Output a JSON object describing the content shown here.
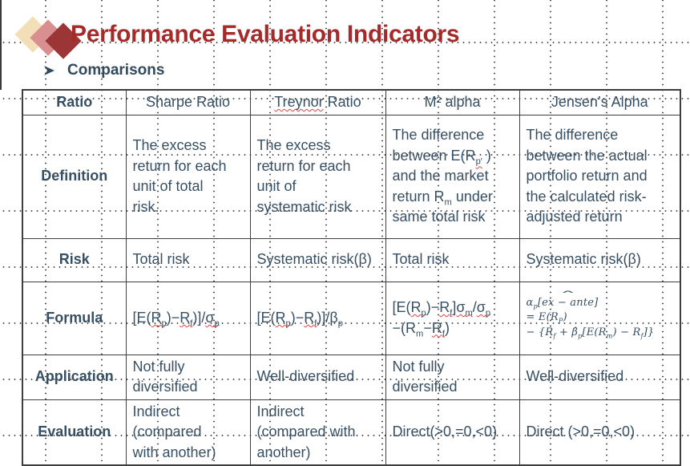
{
  "slide": {
    "title": "Performance Evaluation Indicators",
    "subtitle": "Comparisons",
    "colors": {
      "title_red": "#A62A2A",
      "body_navy": "#374F63",
      "logo_beige": "#F2DFB8",
      "logo_rose": "#D98F8F",
      "logo_dark_red": "#9C3636",
      "table_border": "#3E3E3E",
      "spellcheck_squiggle": "#E24540"
    }
  },
  "table": {
    "header": [
      "Ratio",
      "Sharpe Ratio",
      "<u class='sq'>Treynor</u> Ratio",
      "M² alpha",
      "Jensen’s Alpha"
    ],
    "rows": [
      {
        "label": "Definition",
        "cells": [
          "The excess<br>return for each<br>unit of total<br>risk.",
          "The excess<br>return for each<br>unit of<br>systematic risk",
          "The difference<br>between E(R<sub><u class='sq'>p′</u></sub> )<br>and the market<br>return R<sub>m</sub> under<br>same total risk",
          "The difference<br>between the actual<br>portfolio return and<br>the calculated risk-<br>adjusted return"
        ]
      },
      {
        "label": "Risk",
        "cells": [
          "Total risk",
          "Systematic risk(β)",
          "Total risk",
          "Systematic risk(β)"
        ]
      },
      {
        "label": "Formula",
        "cells": [
          "[E(<u class='sq'>R<sub>p</sub></u>)−<u class='sq'>R<sub>f</sub></u>)]/<u class='sq'>σ<sub>p</sub></u>",
          "[E(<u class='sq'>R<sub>p</sub></u>)−<u class='sq'>R<sub>f</sub></u>)]/β<sub>p</sub>",
          "[E(<u class='sq'>R<sub>p</sub></u>)−<u class='sq'>R<sub>f</sub></u>]<u class='sq'>σ<sub>m</sub></u>/<u class='sq'>σ<sub>p</sub></u><br>−(R<sub>m</sub>−<u class='sq'>R<sub>f</sub></u>)",
          "α<sub>p</sub>[<span class='hatw'>ex − ante</span>]<br>= E(R<sub>P</sub>)<br>− {R<sub>f</sub> + β̂<sub>p</sub>[E(R<sub>m</sub>) − R<sub>f</sub>]}"
        ]
      },
      {
        "label": "Application",
        "cells": [
          "Not fully<br>diversified",
          "Well-diversified",
          "Not fully<br>diversified",
          "Well-diversified"
        ]
      },
      {
        "label": "Evaluation",
        "cells": [
          "Indirect<br>(compared<br>with another)",
          "Indirect<br>(compared with<br>another)",
          "Direct(&gt;0,=0,&lt;0)",
          "Direct (&gt;0,=0,&lt;0)"
        ]
      }
    ]
  }
}
